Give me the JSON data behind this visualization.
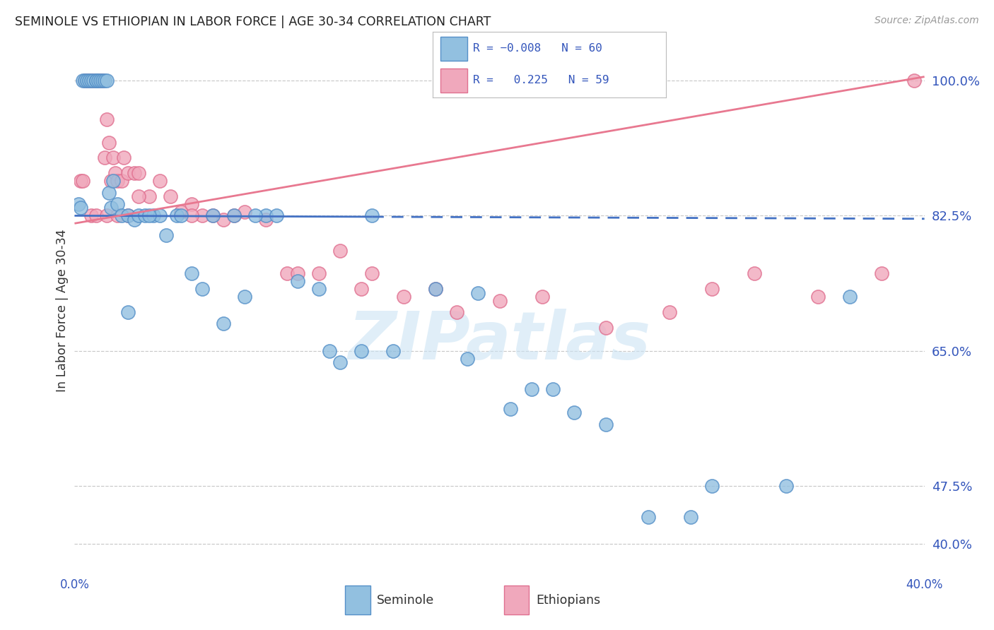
{
  "title": "SEMINOLE VS ETHIOPIAN IN LABOR FORCE | AGE 30-34 CORRELATION CHART",
  "source": "Source: ZipAtlas.com",
  "ylabel": "In Labor Force | Age 30-34",
  "yticks": [
    40.0,
    47.5,
    65.0,
    82.5,
    100.0
  ],
  "ytick_labels": [
    "40.0%",
    "47.5%",
    "65.0%",
    "82.5%",
    "100.0%"
  ],
  "xmin": 0.0,
  "xmax": 40.0,
  "ymin": 37.0,
  "ymax": 103.5,
  "seminole_color": "#92c0e0",
  "ethiopian_color": "#f0a8bc",
  "seminole_edge": "#5590c8",
  "ethiopian_edge": "#e07090",
  "blue_line_color": "#4472c4",
  "pink_line_color": "#e87890",
  "watermark": "ZIPatlas",
  "seminole_x": [
    0.2,
    0.3,
    0.4,
    0.5,
    0.6,
    0.7,
    0.8,
    0.9,
    1.0,
    1.0,
    1.1,
    1.2,
    1.3,
    1.4,
    1.5,
    1.6,
    1.7,
    1.8,
    2.0,
    2.2,
    2.5,
    2.8,
    3.0,
    3.3,
    3.7,
    4.0,
    4.3,
    4.8,
    5.5,
    6.0,
    7.0,
    8.0,
    9.0,
    9.5,
    10.5,
    11.5,
    12.5,
    13.5,
    15.0,
    17.0,
    18.5,
    19.0,
    20.5,
    21.5,
    22.5,
    23.5,
    25.0,
    27.0,
    29.0,
    30.0,
    33.5,
    36.5,
    2.5,
    3.5,
    5.0,
    6.5,
    7.5,
    8.5,
    12.0,
    14.0
  ],
  "seminole_y": [
    84.0,
    83.5,
    100.0,
    100.0,
    100.0,
    100.0,
    100.0,
    100.0,
    100.0,
    100.0,
    100.0,
    100.0,
    100.0,
    100.0,
    100.0,
    85.5,
    83.5,
    87.0,
    84.0,
    82.5,
    82.5,
    82.0,
    82.5,
    82.5,
    82.5,
    82.5,
    80.0,
    82.5,
    75.0,
    73.0,
    68.5,
    72.0,
    82.5,
    82.5,
    74.0,
    73.0,
    63.5,
    65.0,
    65.0,
    73.0,
    64.0,
    72.5,
    57.5,
    60.0,
    60.0,
    57.0,
    55.5,
    43.5,
    43.5,
    47.5,
    47.5,
    72.0,
    70.0,
    82.5,
    82.5,
    82.5,
    82.5,
    82.5,
    65.0,
    82.5
  ],
  "ethiopian_x": [
    0.3,
    0.4,
    0.5,
    0.6,
    0.7,
    0.8,
    0.9,
    1.0,
    1.1,
    1.2,
    1.3,
    1.4,
    1.5,
    1.6,
    1.7,
    1.8,
    1.9,
    2.0,
    2.2,
    2.3,
    2.5,
    2.8,
    3.0,
    3.5,
    4.0,
    4.5,
    5.0,
    5.5,
    6.0,
    6.5,
    7.0,
    8.0,
    9.0,
    10.0,
    11.5,
    12.5,
    14.0,
    15.5,
    17.0,
    18.0,
    20.0,
    22.0,
    25.0,
    28.0,
    30.0,
    32.0,
    35.0,
    38.0,
    39.5,
    0.8,
    1.0,
    1.5,
    2.0,
    2.5,
    3.0,
    5.5,
    7.5,
    10.5,
    13.5
  ],
  "ethiopian_y": [
    87.0,
    87.0,
    100.0,
    100.0,
    100.0,
    100.0,
    100.0,
    100.0,
    100.0,
    100.0,
    100.0,
    90.0,
    95.0,
    92.0,
    87.0,
    90.0,
    88.0,
    87.0,
    87.0,
    90.0,
    88.0,
    88.0,
    88.0,
    85.0,
    87.0,
    85.0,
    83.0,
    84.0,
    82.5,
    82.5,
    82.0,
    83.0,
    82.0,
    75.0,
    75.0,
    78.0,
    75.0,
    72.0,
    73.0,
    70.0,
    71.5,
    72.0,
    68.0,
    70.0,
    73.0,
    75.0,
    72.0,
    75.0,
    100.0,
    82.5,
    82.5,
    82.5,
    82.5,
    82.5,
    85.0,
    82.5,
    82.5,
    75.0,
    73.0
  ],
  "blue_trend_y1": 82.5,
  "blue_trend_y2": 82.1,
  "pink_trend_y1": 81.5,
  "pink_trend_y2": 100.5,
  "blue_solid_end": 14.0,
  "legend_color": "#3355bb"
}
